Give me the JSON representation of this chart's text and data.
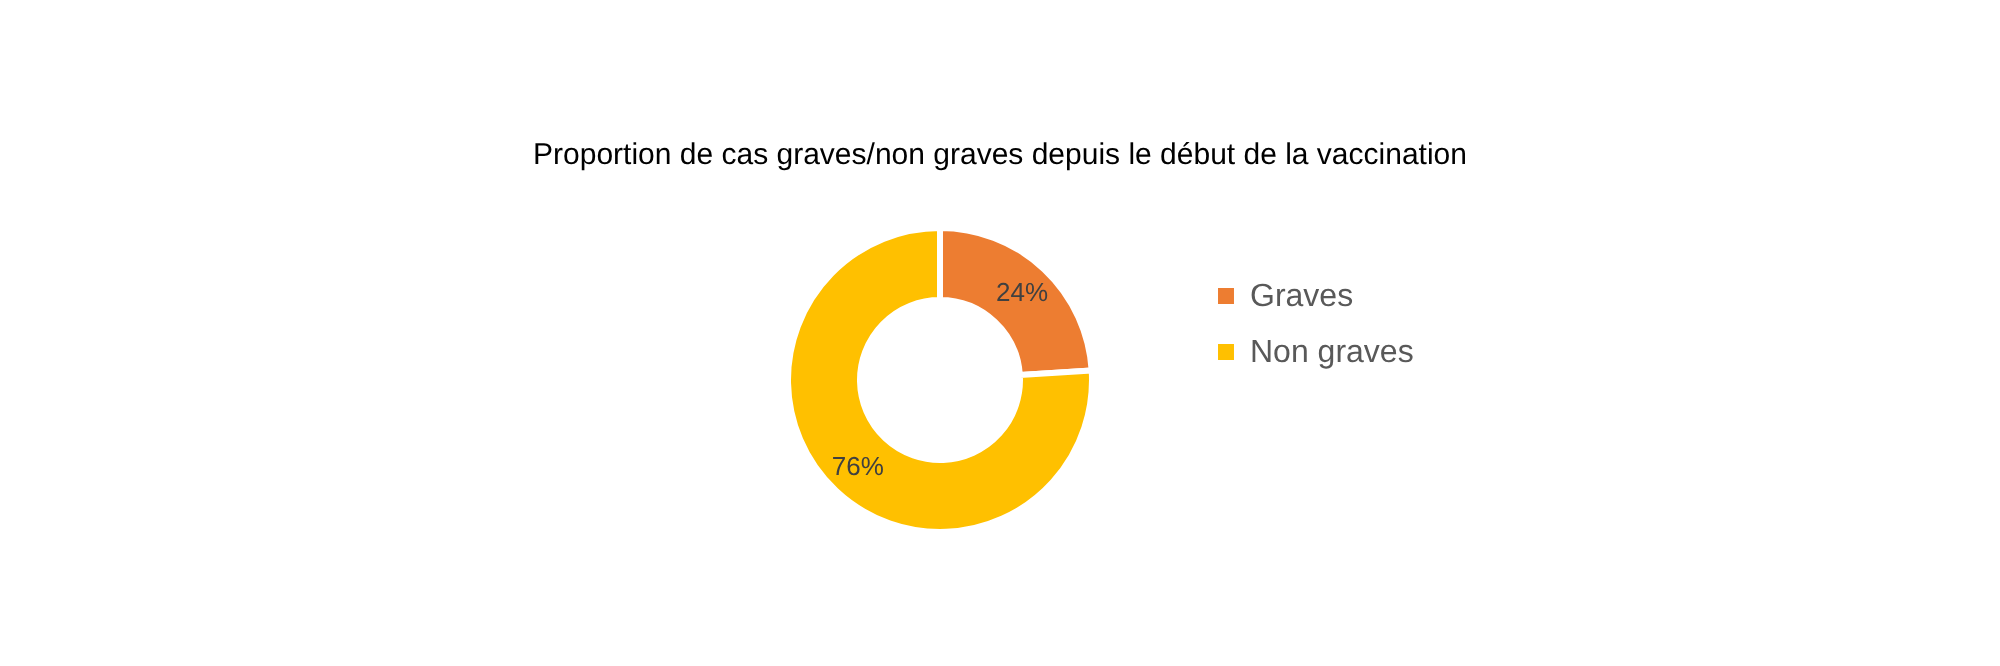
{
  "chart_data": {
    "type": "donut",
    "title": "Proportion de cas graves/non graves depuis le début de la vaccination",
    "categories": [
      "Graves",
      "Non graves"
    ],
    "values": [
      24,
      76
    ],
    "colors": [
      "#ed7d31",
      "#ffc000"
    ],
    "value_labels": [
      "24%",
      "76%"
    ],
    "legend": "right"
  }
}
